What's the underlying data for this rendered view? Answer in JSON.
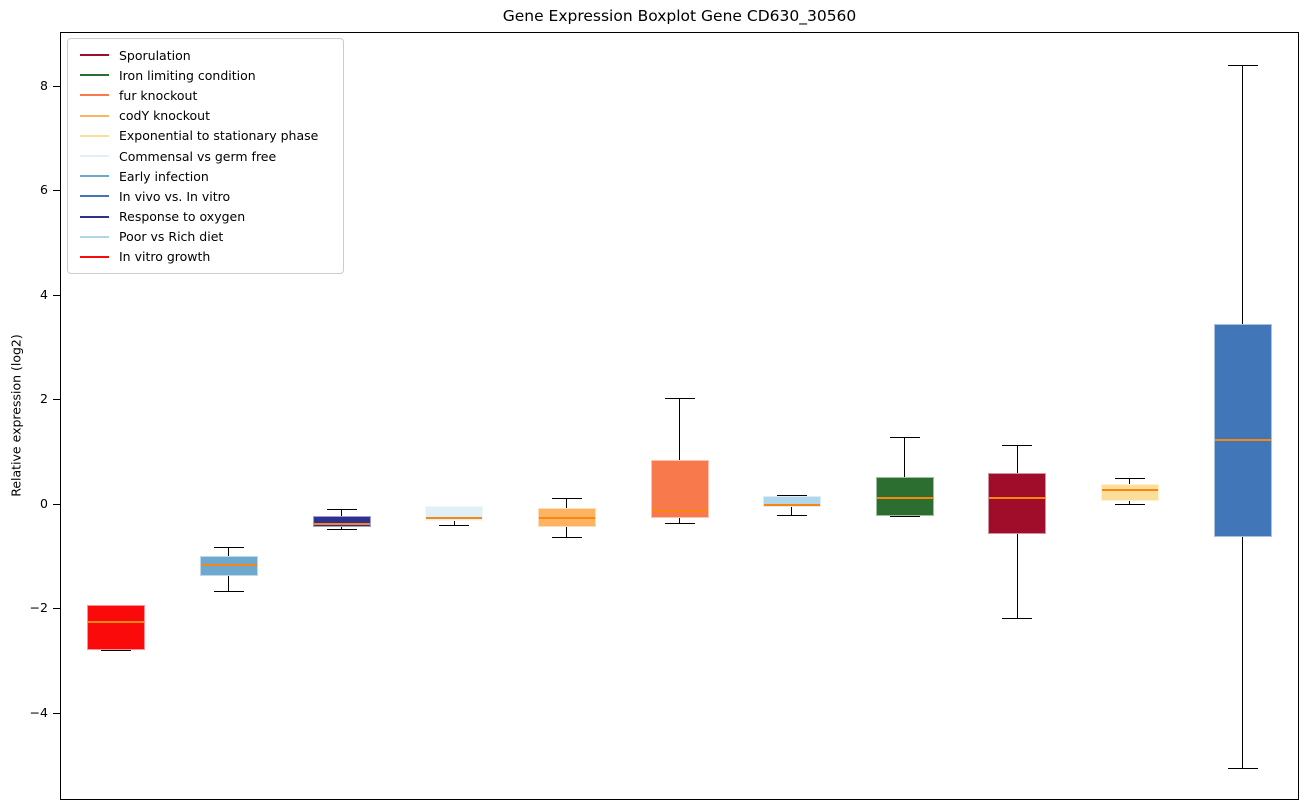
{
  "chart_data": {
    "type": "boxplot",
    "title": "Gene Expression Boxplot Gene CD630_30560",
    "xlabel": "",
    "ylabel": "Relative expression (log2)",
    "ylim": [
      -5.67,
      9.03
    ],
    "yticks": [
      8,
      6,
      4,
      2,
      0,
      -2,
      -4
    ],
    "grid": false,
    "legend_position": "upper left",
    "median_color": "#f8870f",
    "whisker_color": "#000000",
    "series": [
      {
        "name": "In vitro growth",
        "color": "#fa0a0a",
        "whislo": -2.79,
        "q1": -2.79,
        "med": -2.27,
        "q3": -1.93,
        "whishi": -1.93
      },
      {
        "name": "Early infection",
        "color": "#6ea8cf",
        "whislo": -1.67,
        "q1": -1.38,
        "med": -1.17,
        "q3": -1.0,
        "whishi": -0.82
      },
      {
        "name": "Response to oxygen",
        "color": "#2e3092",
        "whislo": -0.48,
        "q1": -0.45,
        "med": -0.39,
        "q3": -0.24,
        "whishi": -0.1
      },
      {
        "name": "Commensal vs germ free",
        "color": "#e0f0f7",
        "whislo": -0.4,
        "q1": -0.33,
        "med": -0.27,
        "q3": -0.05,
        "whishi": -0.04
      },
      {
        "name": "codY knockout",
        "color": "#fdb462",
        "whislo": -0.64,
        "q1": -0.45,
        "med": -0.28,
        "q3": -0.08,
        "whishi": 0.12
      },
      {
        "name": "fur knockout",
        "color": "#f8794b",
        "whislo": -0.36,
        "q1": -0.28,
        "med": -0.14,
        "q3": 0.83,
        "whishi": 2.03
      },
      {
        "name": "Poor vs Rich diet",
        "color": "#afd6ea",
        "whislo": -0.21,
        "q1": -0.07,
        "med": -0.02,
        "q3": 0.15,
        "whishi": 0.16
      },
      {
        "name": "Iron limiting condition",
        "color": "#2b6e2f",
        "whislo": -0.24,
        "q1": -0.23,
        "med": 0.12,
        "q3": 0.52,
        "whishi": 1.28
      },
      {
        "name": "Sporulation",
        "color": "#a00d2b",
        "whislo": -2.19,
        "q1": -0.58,
        "med": 0.11,
        "q3": 0.59,
        "whishi": 1.13
      },
      {
        "name": "Exponential to stationary phase",
        "color": "#fcdd9a",
        "whislo": -0.01,
        "q1": 0.06,
        "med": 0.26,
        "q3": 0.37,
        "whishi": 0.5
      },
      {
        "name": "In vivo vs. In vitro",
        "color": "#4176b8",
        "whislo": -5.05,
        "q1": -0.64,
        "med": 1.22,
        "q3": 3.44,
        "whishi": 8.4
      }
    ],
    "legend": [
      {
        "label": "Sporulation",
        "color": "#a00d2b"
      },
      {
        "label": "Iron limiting condition",
        "color": "#2b6e2f"
      },
      {
        "label": "fur knockout",
        "color": "#f8794b"
      },
      {
        "label": "codY knockout",
        "color": "#fdb462"
      },
      {
        "label": "Exponential to stationary phase",
        "color": "#fcdd9a"
      },
      {
        "label": "Commensal vs germ free",
        "color": "#e0f0f7"
      },
      {
        "label": "Early infection",
        "color": "#6ea8cf"
      },
      {
        "label": "In vivo vs. In vitro",
        "color": "#4176b8"
      },
      {
        "label": "Response to oxygen",
        "color": "#2e3092"
      },
      {
        "label": "Poor vs Rich diet",
        "color": "#afd6ea"
      },
      {
        "label": "In vitro growth",
        "color": "#fa0a0a"
      }
    ]
  }
}
